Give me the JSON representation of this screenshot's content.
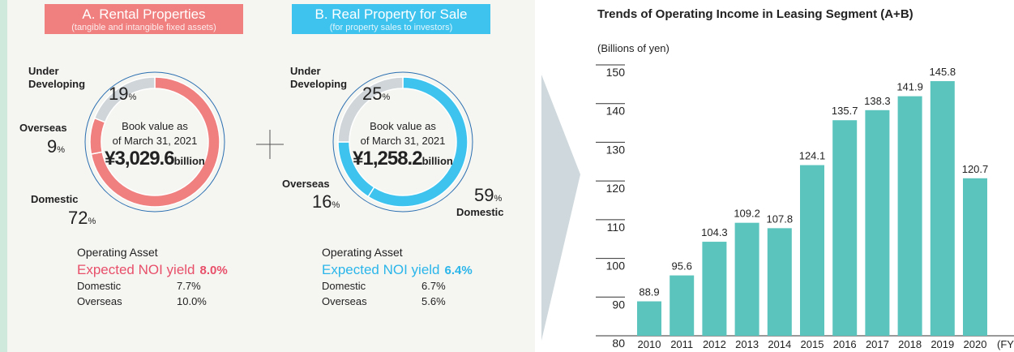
{
  "chart_data": [
    {
      "type": "pie",
      "title": "A. Rental Properties",
      "subtitle": "(tangible and intangible fixed assets)",
      "categories": [
        "Domestic",
        "Overseas",
        "Under Developing"
      ],
      "values": [
        72,
        9,
        19
      ],
      "unit": "%",
      "colors": [
        "#f07f7f",
        "#f07f7f",
        "#cfd5d8"
      ],
      "header_color": "#f07f7f",
      "center_lines": [
        "Book value as",
        "of March 31, 2021"
      ],
      "center_value": "¥3,029.6",
      "center_unit": "billion",
      "noi": {
        "heading": "Operating Asset",
        "label": "Expected NOI yield",
        "value": "8.0%",
        "color": "#e8506a",
        "rows": [
          {
            "name": "Domestic",
            "value": "7.7%"
          },
          {
            "name": "Overseas",
            "value": "10.0%"
          }
        ]
      }
    },
    {
      "type": "pie",
      "title": "B. Real Property for Sale",
      "subtitle": "(for property sales to investors)",
      "categories": [
        "Domestic",
        "Overseas",
        "Under Developing"
      ],
      "values": [
        59,
        16,
        25
      ],
      "unit": "%",
      "colors": [
        "#3ec3ef",
        "#3ec3ef",
        "#cfd5d8"
      ],
      "header_color": "#3ec3ef",
      "center_lines": [
        "Book value as",
        "of March 31, 2021"
      ],
      "center_value": "¥1,258.2",
      "center_unit": "billion",
      "noi": {
        "heading": "Operating Asset",
        "label": "Expected NOI yield",
        "value": "6.4%",
        "color": "#2bb6ea",
        "rows": [
          {
            "name": "Domestic",
            "value": "6.7%"
          },
          {
            "name": "Overseas",
            "value": "5.6%"
          }
        ]
      }
    },
    {
      "type": "bar",
      "title": "Trends of Operating Income in Leasing Segment (A+B)",
      "y_label": "(Billions of yen)",
      "x_unit": "(FY)",
      "categories": [
        "2010",
        "2011",
        "2012",
        "2013",
        "2014",
        "2015",
        "2016",
        "2017",
        "2018",
        "2019",
        "2020"
      ],
      "values": [
        88.9,
        95.6,
        104.3,
        109.2,
        107.8,
        124.1,
        135.7,
        138.3,
        141.9,
        145.8,
        120.7
      ],
      "color": "#5bc4bd",
      "ylim": [
        80,
        150
      ],
      "yticks": [
        80,
        90,
        100,
        110,
        120,
        130,
        140,
        150
      ]
    }
  ]
}
